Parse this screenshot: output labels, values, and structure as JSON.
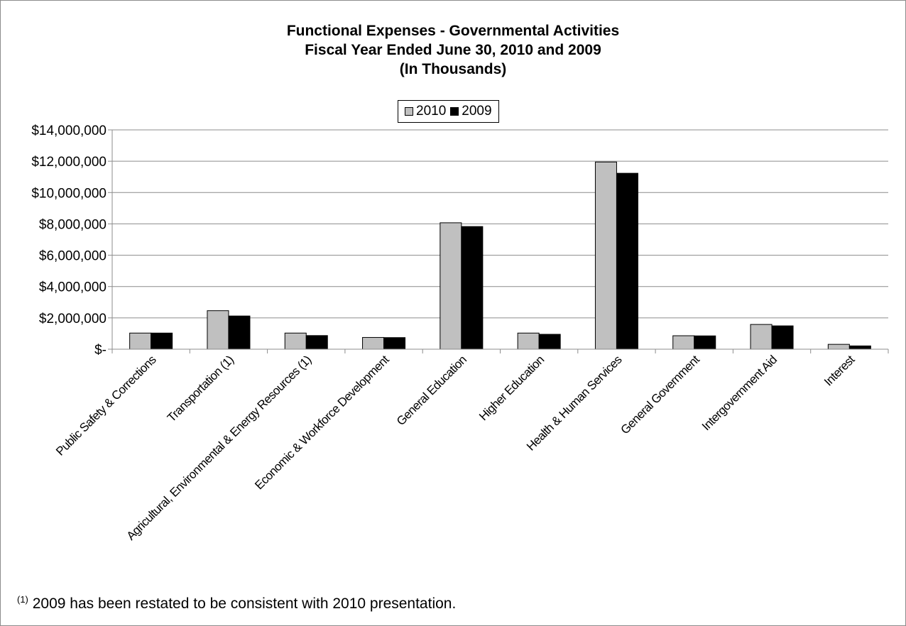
{
  "chart_data": {
    "type": "bar",
    "title": [
      "Functional Expenses - Governmental Activities",
      "Fiscal Year Ended June 30, 2010 and 2009",
      "(In Thousands)"
    ],
    "categories": [
      "Public Safety & Corrections",
      "Transportation (1)",
      "Agricultural, Environmental & Energy Resources (1)",
      "Economic & Workforce Development",
      "General Education",
      "Higher Education",
      "Health & Human Services",
      "General Government",
      "Intergovernment Aid",
      "Interest"
    ],
    "series": [
      {
        "name": "2010",
        "color": "#c0c0c0",
        "values": [
          1030000,
          2460000,
          1030000,
          750000,
          8070000,
          1030000,
          11950000,
          860000,
          1580000,
          310000
        ]
      },
      {
        "name": "2009",
        "color": "#000000",
        "values": [
          1030000,
          2120000,
          870000,
          740000,
          7830000,
          950000,
          11230000,
          850000,
          1490000,
          210000
        ]
      }
    ],
    "ylim": [
      0,
      14000000
    ],
    "yticks": [
      0,
      2000000,
      4000000,
      6000000,
      8000000,
      10000000,
      12000000,
      14000000
    ],
    "ytick_labels": [
      "$-",
      "$2,000,000",
      "$4,000,000",
      "$6,000,000",
      "$8,000,000",
      "$10,000,000",
      "$12,000,000",
      "$14,000,000"
    ],
    "xlabel": "",
    "ylabel": "",
    "grid": true,
    "legend_position": "top-center"
  },
  "footnote": {
    "marker": "(1)",
    "text": " 2009 has been restated to be consistent with 2010 presentation."
  }
}
